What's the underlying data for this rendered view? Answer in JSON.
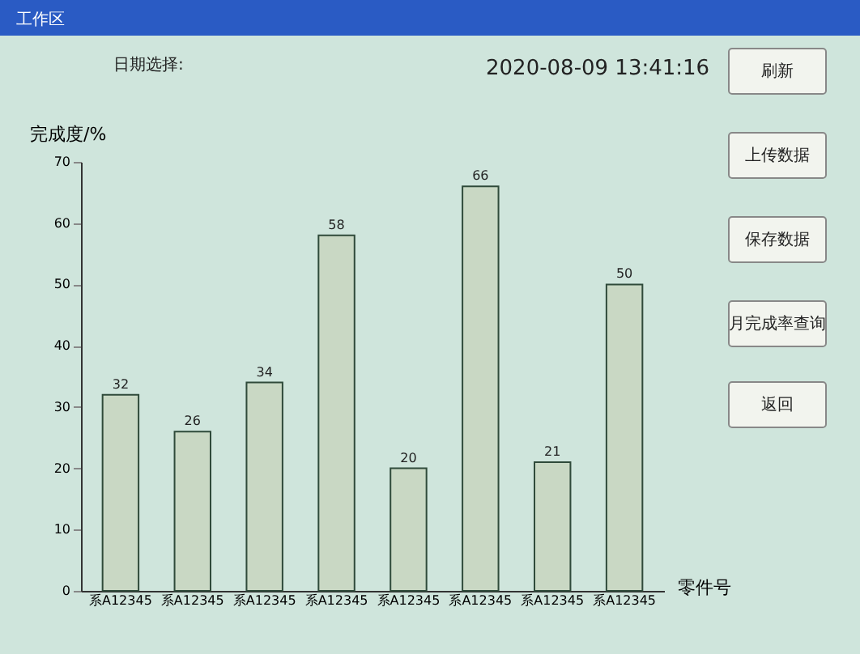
{
  "chart_data": {
    "type": "bar",
    "categories": [
      "系A12345",
      "系A12345",
      "系A12345",
      "系A12345",
      "系A12345",
      "系A12345",
      "系A12345",
      "系A12345"
    ],
    "values": [
      32,
      26,
      34,
      58,
      20,
      66,
      21,
      50
    ],
    "color": "#c9d8c4",
    "xlabel": "零件号",
    "ylabel": "完成度/%",
    "ylim": [
      0,
      70
    ],
    "yticks": [
      0,
      10,
      20,
      30,
      40,
      50,
      60,
      70
    ],
    "data_labels": true,
    "grid": false,
    "annotations": [
      "工作区",
      "日期选择:",
      "2020-08-09 13:41:16",
      "刷新",
      "上传数据",
      "保存数据",
      "月完成率查询",
      "返回"
    ]
  }
}
